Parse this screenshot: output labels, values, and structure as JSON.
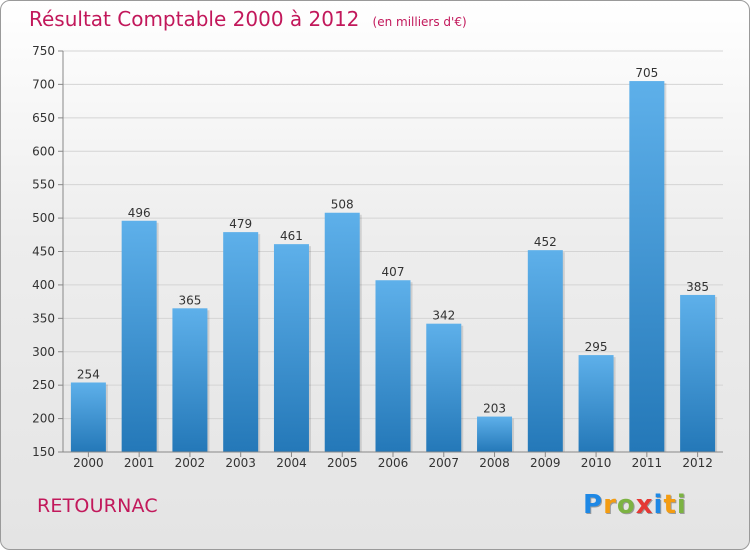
{
  "title": "Résultat Comptable 2000 à 2012",
  "unit": "(en milliers d'€)",
  "commune": "RETOURNAC",
  "logo": {
    "letters": [
      "P",
      "r",
      "o",
      "x",
      "i",
      "t",
      "i"
    ],
    "colors": [
      "#1e88e5",
      "#f39c12",
      "#7cb342",
      "#e53935",
      "#1e88e5",
      "#f39c12",
      "#7cb342"
    ]
  },
  "colors": {
    "title": "#c2185b",
    "bar_light": "#5eb0ea",
    "bar_dark": "#2478b8",
    "grid": "#d4d4d4"
  },
  "chart_data": {
    "type": "bar",
    "title": "Résultat Comptable 2000 à 2012",
    "ylabel": "",
    "xlabel": "",
    "categories": [
      "2000",
      "2001",
      "2002",
      "2003",
      "2004",
      "2005",
      "2006",
      "2007",
      "2008",
      "2009",
      "2010",
      "2011",
      "2012"
    ],
    "values": [
      254,
      496,
      365,
      479,
      461,
      508,
      407,
      342,
      203,
      452,
      295,
      705,
      385
    ],
    "ylim": [
      150,
      750
    ],
    "yticks": [
      150,
      200,
      250,
      300,
      350,
      400,
      450,
      500,
      550,
      600,
      650,
      700,
      750
    ],
    "grid": true,
    "data_labels": true
  }
}
